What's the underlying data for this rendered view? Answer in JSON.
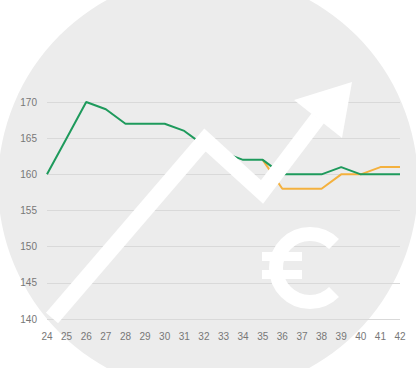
{
  "chart_data": {
    "type": "line",
    "categories": [
      24,
      25,
      26,
      27,
      28,
      29,
      30,
      31,
      32,
      33,
      34,
      35,
      36,
      37,
      38,
      39,
      40,
      41,
      42
    ],
    "series": [
      {
        "color": "#1e9a5c",
        "values": [
          160,
          165,
          170,
          169,
          167,
          167,
          167,
          166,
          164,
          163,
          162,
          162,
          160,
          160,
          160,
          161,
          160,
          160,
          160
        ]
      },
      {
        "color": "#f4b13e",
        "values": [
          null,
          null,
          null,
          null,
          null,
          null,
          null,
          null,
          null,
          null,
          null,
          162,
          158,
          158,
          158,
          160,
          160,
          161,
          161
        ]
      }
    ],
    "ylim": [
      140,
      170
    ],
    "yticks": [
      140,
      145,
      150,
      155,
      160,
      165,
      170
    ],
    "grid": true
  }
}
